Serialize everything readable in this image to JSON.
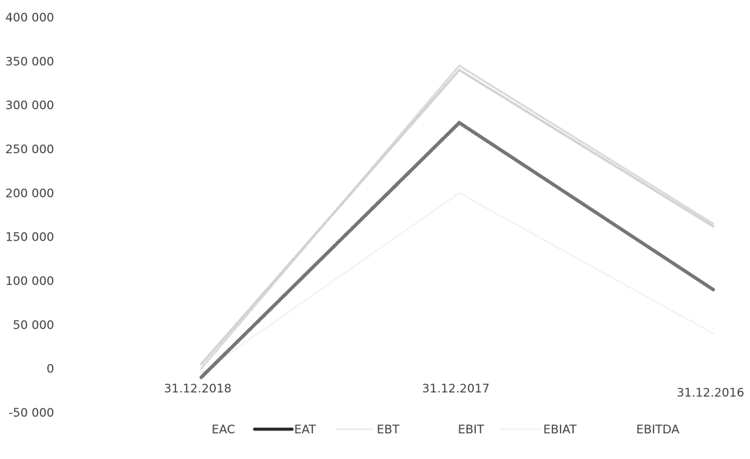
{
  "chart_data": {
    "type": "line",
    "title": "",
    "xlabel": "",
    "ylabel": "",
    "categories": [
      "31.12.2018",
      "31.12.2017",
      "31.12.2016"
    ],
    "y_ticks": [
      "400 000",
      "350 000",
      "300 000",
      "250 000",
      "200 000",
      "150 000",
      "100 000",
      "50 000",
      "0",
      "-50 000"
    ],
    "y_tick_values": [
      400000,
      350000,
      300000,
      250000,
      200000,
      150000,
      100000,
      50000,
      0,
      -50000
    ],
    "ylim": [
      -50000,
      400000
    ],
    "grid": false,
    "legend_position": "bottom",
    "series": [
      {
        "name": "EAC",
        "values": [
          0,
          345000,
          165000
        ],
        "color": "#d6d6d6",
        "style": "light"
      },
      {
        "name": "EAT",
        "values": [
          -10000,
          280000,
          90000
        ],
        "color": "#2a2a2a",
        "style": "solid"
      },
      {
        "name": "EBT",
        "values": [
          -8000,
          278000,
          91000
        ],
        "color": "#e6e6e6",
        "style": "faint"
      },
      {
        "name": "EBIT",
        "values": [
          -10000,
          280000,
          90000
        ],
        "color": "#7a7a7a",
        "style": "hatched"
      },
      {
        "name": "EBIAT",
        "values": [
          -5000,
          200000,
          40000
        ],
        "color": "#eeeeee",
        "style": "faint"
      },
      {
        "name": "EBITDA",
        "values": [
          5000,
          340000,
          162000
        ],
        "color": "#cfcfcf",
        "style": "hatched-light"
      }
    ]
  }
}
